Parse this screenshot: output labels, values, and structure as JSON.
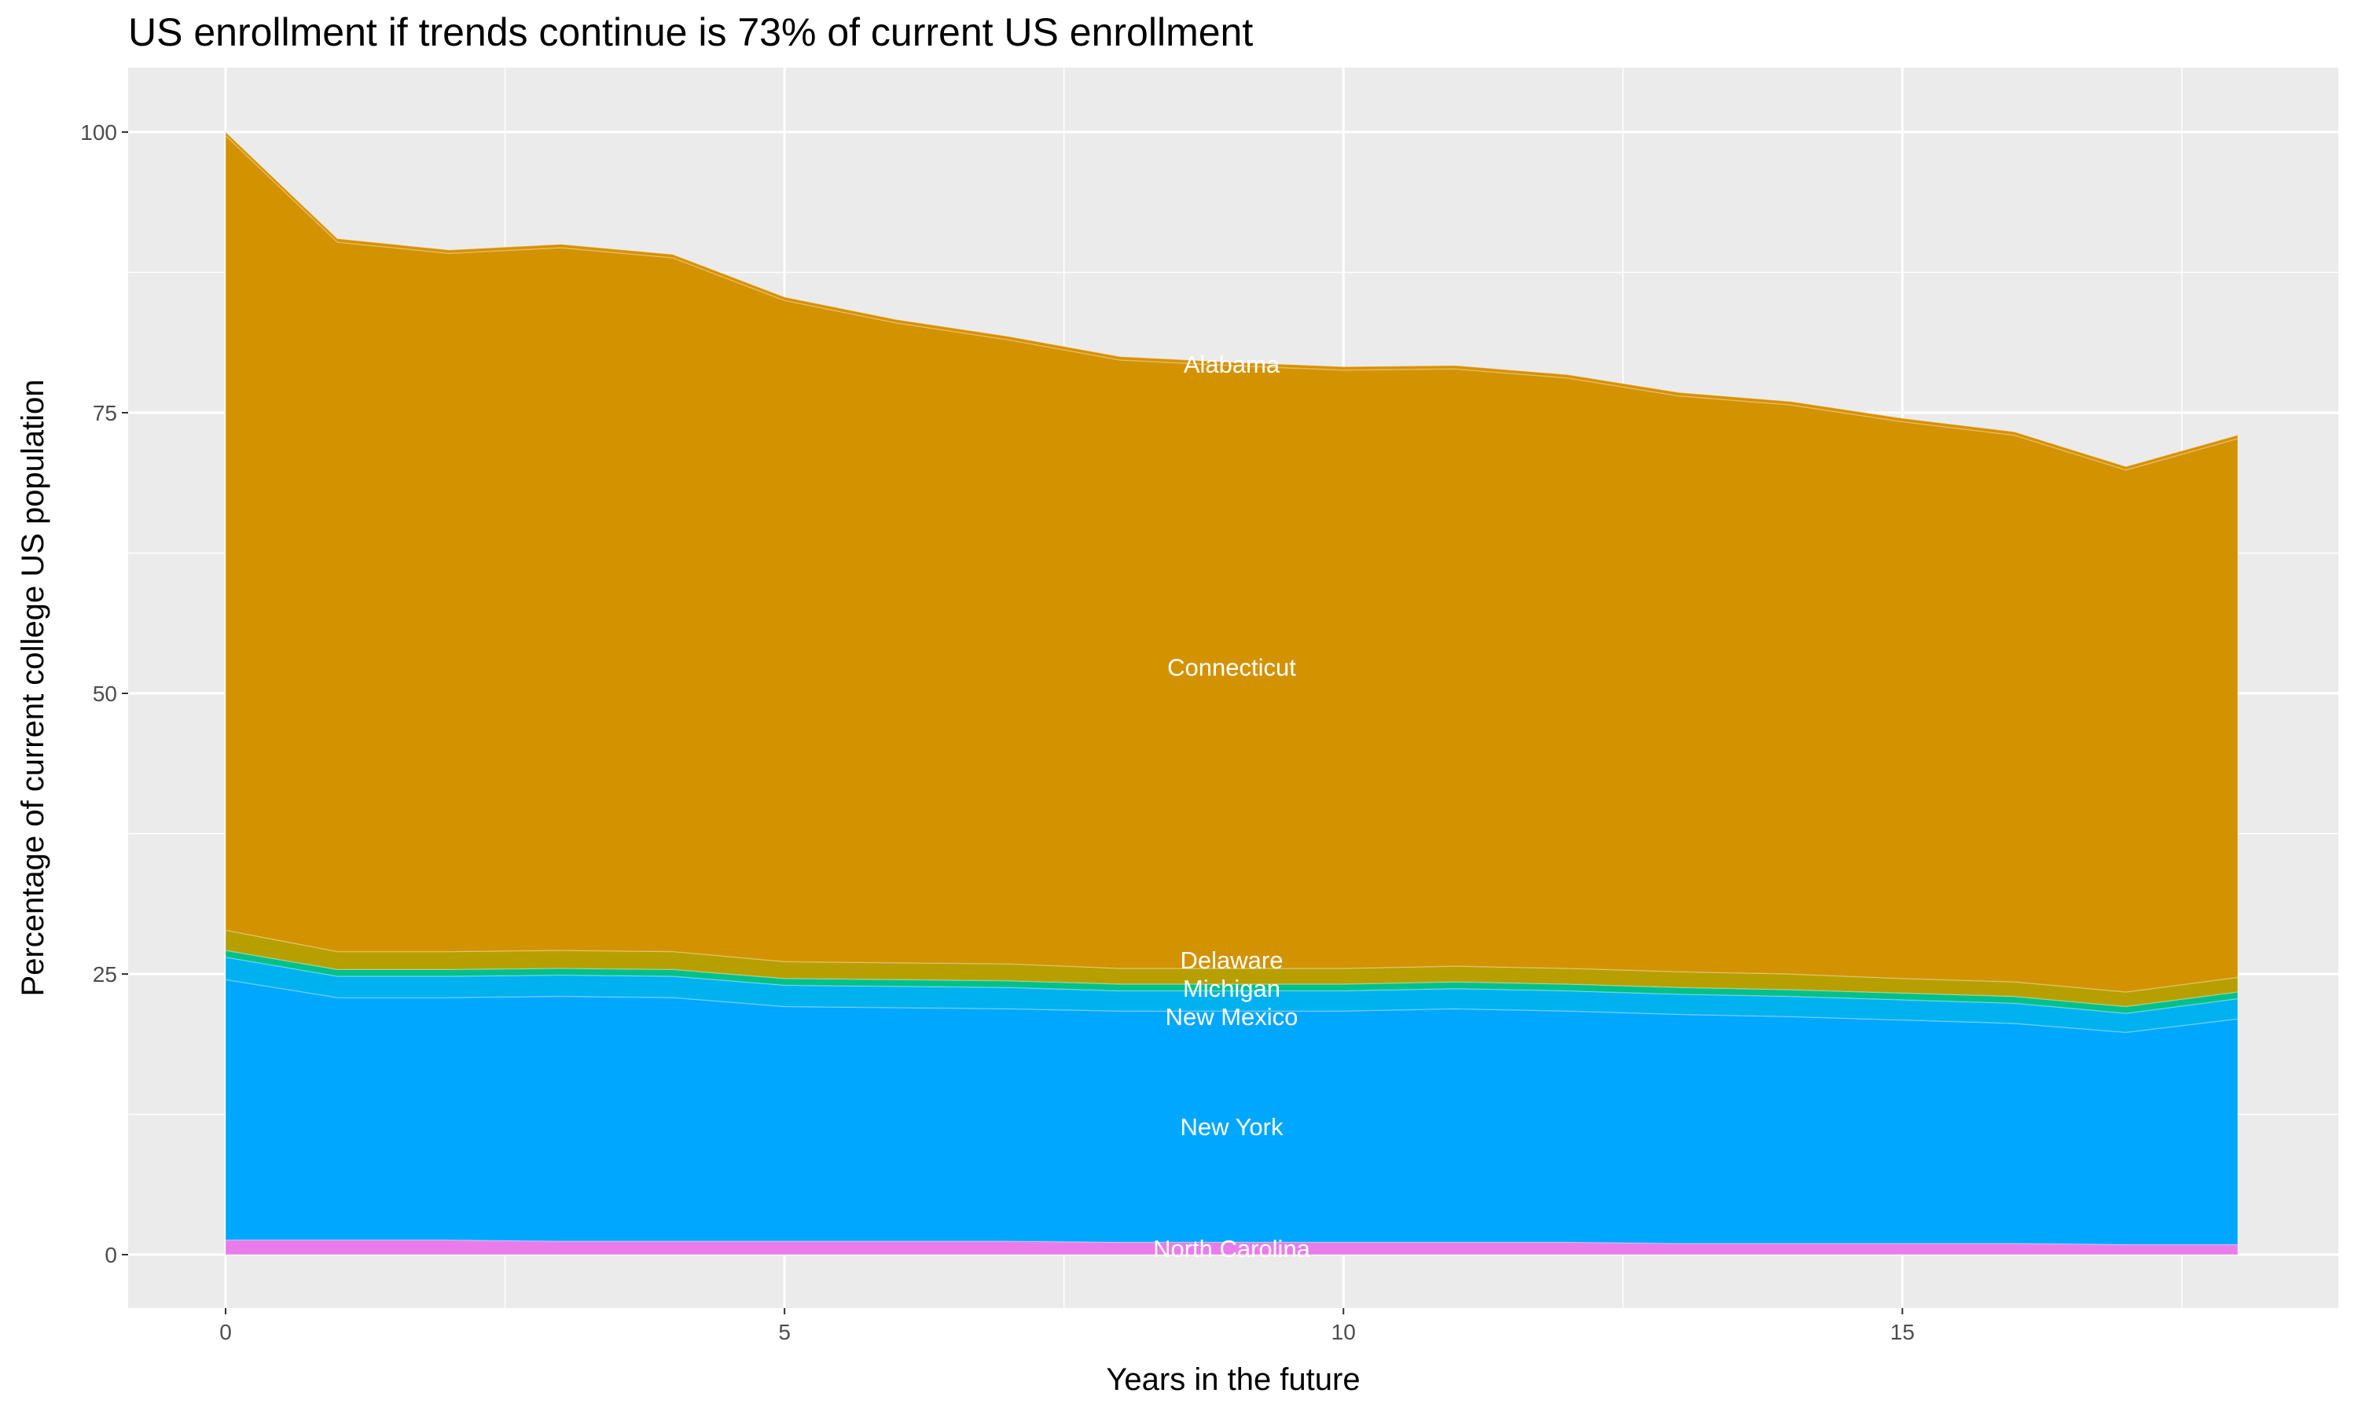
{
  "chart_data": {
    "type": "area",
    "stacked": true,
    "title": "US enrollment if trends continue is 73% of current US enrollment",
    "xlabel": "Years in the future",
    "ylabel": "Percentage of current college US population",
    "xlim": [
      0,
      18
    ],
    "ylim": [
      0,
      100
    ],
    "x_ticks": [
      0,
      5,
      10,
      15
    ],
    "y_ticks": [
      0,
      25,
      50,
      75,
      100
    ],
    "grid": true,
    "legend": "none",
    "x": [
      0,
      1,
      2,
      3,
      4,
      5,
      6,
      7,
      8,
      9,
      10,
      11,
      12,
      13,
      14,
      15,
      16,
      17,
      18
    ],
    "series": [
      {
        "name": "North Carolina",
        "color": "#e97cea",
        "values": [
          1.3,
          1.3,
          1.3,
          1.2,
          1.2,
          1.2,
          1.2,
          1.2,
          1.1,
          1.1,
          1.1,
          1.1,
          1.1,
          1.0,
          1.0,
          1.0,
          1.0,
          0.9,
          0.9
        ]
      },
      {
        "name": "New York",
        "color": "#00a7ff",
        "values": [
          23.2,
          21.6,
          21.6,
          21.8,
          21.7,
          20.9,
          20.8,
          20.7,
          20.6,
          20.6,
          20.6,
          20.8,
          20.6,
          20.4,
          20.2,
          19.9,
          19.6,
          18.9,
          20.1
        ]
      },
      {
        "name": "New Mexico",
        "color": "#00b1f0",
        "values": [
          2.0,
          1.9,
          1.9,
          1.9,
          1.9,
          1.9,
          1.9,
          1.9,
          1.8,
          1.8,
          1.8,
          1.8,
          1.8,
          1.8,
          1.8,
          1.8,
          1.8,
          1.7,
          1.8
        ]
      },
      {
        "name": "Michigan",
        "color": "#00c08b",
        "values": [
          0.6,
          0.6,
          0.6,
          0.6,
          0.6,
          0.6,
          0.6,
          0.6,
          0.6,
          0.6,
          0.6,
          0.6,
          0.6,
          0.6,
          0.6,
          0.6,
          0.6,
          0.6,
          0.6
        ]
      },
      {
        "name": "Delaware",
        "color": "#b79f00",
        "values": [
          1.8,
          1.6,
          1.6,
          1.6,
          1.6,
          1.5,
          1.5,
          1.5,
          1.4,
          1.4,
          1.4,
          1.4,
          1.4,
          1.4,
          1.4,
          1.3,
          1.3,
          1.3,
          1.3
        ]
      },
      {
        "name": "Connecticut",
        "color": "#d39200",
        "values": [
          70.8,
          63.2,
          62.2,
          62.6,
          61.8,
          58.9,
          57.0,
          55.6,
          54.2,
          53.7,
          53.3,
          53.2,
          52.6,
          51.3,
          50.7,
          49.6,
          48.7,
          46.5,
          48.0
        ]
      },
      {
        "name": "Alabama",
        "color": "#d89000",
        "values": [
          0.3,
          0.3,
          0.3,
          0.3,
          0.3,
          0.3,
          0.3,
          0.3,
          0.3,
          0.3,
          0.3,
          0.3,
          0.3,
          0.3,
          0.3,
          0.3,
          0.3,
          0.3,
          0.3
        ]
      }
    ],
    "label_x": 9
  }
}
